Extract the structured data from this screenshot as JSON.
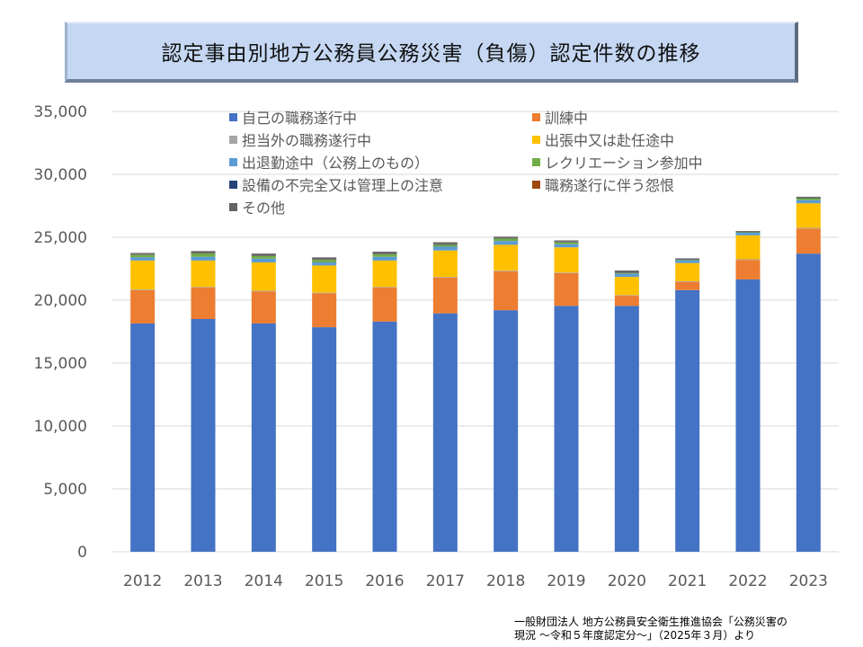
{
  "chart_data": {
    "type": "bar",
    "stacked": true,
    "title": "認定事由別地方公務員公務災害（負傷）認定件数の推移",
    "xlabel": "",
    "ylabel": "",
    "ylim": [
      0,
      35000
    ],
    "yticks": [
      0,
      5000,
      10000,
      15000,
      20000,
      25000,
      30000,
      35000
    ],
    "ytick_labels": [
      "0",
      "5,000",
      "10,000",
      "15,000",
      "20,000",
      "25,000",
      "30,000",
      "35,000"
    ],
    "grid": true,
    "legend_position": "top",
    "categories": [
      "2012",
      "2013",
      "2014",
      "2015",
      "2016",
      "2017",
      "2018",
      "2019",
      "2020",
      "2021",
      "2022",
      "2023"
    ],
    "series": [
      {
        "name": "自己の職務遂行中",
        "color": "#4472c4",
        "values": [
          18150,
          18500,
          18150,
          17850,
          18300,
          18950,
          19200,
          19550,
          19550,
          20800,
          21650,
          23700
        ]
      },
      {
        "name": "訓練中",
        "color": "#ed7d31",
        "values": [
          2650,
          2500,
          2550,
          2700,
          2700,
          2850,
          3100,
          2600,
          800,
          650,
          1550,
          2000
        ]
      },
      {
        "name": "担当外の職務遂行中",
        "color": "#a5a5a5",
        "values": [
          50,
          50,
          50,
          50,
          50,
          50,
          50,
          50,
          50,
          50,
          50,
          50
        ]
      },
      {
        "name": "出張中又は赴任途中",
        "color": "#ffc000",
        "values": [
          2300,
          2100,
          2250,
          2150,
          2100,
          2100,
          2050,
          2000,
          1450,
          1450,
          1900,
          1950
        ]
      },
      {
        "name": "出退勤途中（公務上のもの）",
        "color": "#5b9bd5",
        "values": [
          250,
          300,
          300,
          250,
          300,
          300,
          300,
          250,
          250,
          200,
          200,
          250
        ]
      },
      {
        "name": "レクリエーション参加中",
        "color": "#70ad47",
        "values": [
          200,
          250,
          200,
          200,
          200,
          150,
          200,
          150,
          50,
          50,
          50,
          150
        ]
      },
      {
        "name": "設備の不完全又は管理上の注意",
        "color": "#264478",
        "values": [
          30,
          30,
          30,
          30,
          30,
          30,
          30,
          30,
          30,
          50,
          30,
          50
        ]
      },
      {
        "name": "職務遂行に伴う怨恨",
        "color": "#9e480e",
        "values": [
          20,
          20,
          20,
          20,
          20,
          20,
          20,
          20,
          20,
          20,
          20,
          20
        ]
      },
      {
        "name": "その他",
        "color": "#636363",
        "values": [
          100,
          150,
          150,
          150,
          150,
          150,
          100,
          100,
          150,
          50,
          50,
          50
        ]
      }
    ]
  },
  "source_note": {
    "line1": "一般財団法人 地方公務員安全衛生推進協会「公務災害の",
    "line2": "現況 ～令和５年度認定分～」（2025年３月）より"
  }
}
